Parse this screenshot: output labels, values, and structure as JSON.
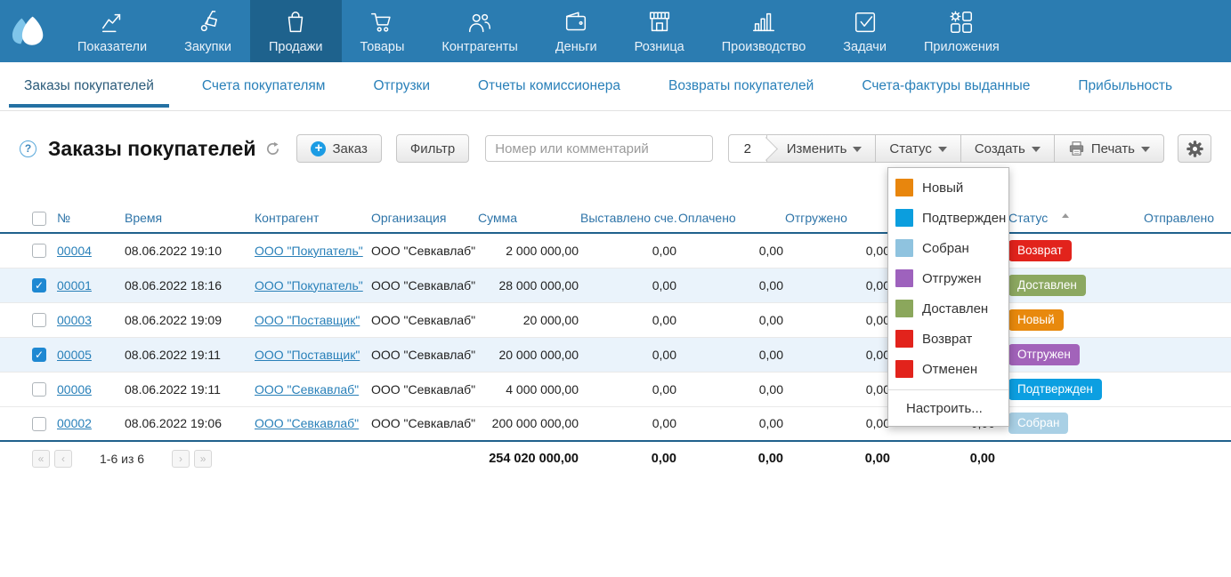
{
  "colors": {
    "topnav_bg": "#2B7CB1",
    "topnav_active_bg": "#1E628D",
    "tab_link": "#2980B9",
    "tab_underline": "#2471A3",
    "table_header_text": "#2E74A8",
    "table_header_border": "#20618C",
    "selected_row_bg": "#EAF3FB",
    "checkbox_checked": "#1E88D2",
    "link": "#2980B9"
  },
  "topnav": {
    "items": [
      {
        "label": "Показатели",
        "icon": "metrics-icon"
      },
      {
        "label": "Закупки",
        "icon": "purchases-icon"
      },
      {
        "label": "Продажи",
        "icon": "sales-icon",
        "active": true
      },
      {
        "label": "Товары",
        "icon": "goods-icon"
      },
      {
        "label": "Контрагенты",
        "icon": "counterparties-icon"
      },
      {
        "label": "Деньги",
        "icon": "money-icon"
      },
      {
        "label": "Розница",
        "icon": "retail-icon"
      },
      {
        "label": "Производство",
        "icon": "production-icon"
      },
      {
        "label": "Задачи",
        "icon": "tasks-icon"
      },
      {
        "label": "Приложения",
        "icon": "apps-icon"
      }
    ]
  },
  "tabs": {
    "items": [
      {
        "label": "Заказы покупателей",
        "active": true
      },
      {
        "label": "Счета покупателям"
      },
      {
        "label": "Отгрузки"
      },
      {
        "label": "Отчеты комиссионера"
      },
      {
        "label": "Возвраты покупателей"
      },
      {
        "label": "Счета-фактуры выданные"
      },
      {
        "label": "Прибыльность"
      }
    ]
  },
  "toolbar": {
    "help_glyph": "?",
    "title": "Заказы покупателей",
    "order_button": "Заказ",
    "filter_button": "Фильтр",
    "search_placeholder": "Номер или комментарий",
    "selected_count": "2",
    "edit_button": "Изменить",
    "status_button": "Статус",
    "create_button": "Создать",
    "print_button": "Печать"
  },
  "status_menu": {
    "items": [
      {
        "label": "Новый",
        "color": "#E8860D"
      },
      {
        "label": "Подтвержден",
        "color": "#0B9EDE"
      },
      {
        "label": "Собран",
        "color": "#8FC3DF"
      },
      {
        "label": "Отгружен",
        "color": "#9E62BD"
      },
      {
        "label": "Доставлен",
        "color": "#8BA75C"
      },
      {
        "label": "Возврат",
        "color": "#E2231C"
      },
      {
        "label": "Отменен",
        "color": "#E2231C"
      }
    ],
    "configure_label": "Настроить..."
  },
  "table": {
    "headers": [
      "№",
      "Время",
      "Контрагент",
      "Организация",
      "Сумма",
      "Выставлено сче...",
      "Оплачено",
      "Отгружено",
      "",
      "Статус",
      "Отправлено"
    ],
    "rows": [
      {
        "checked": false,
        "selected": false,
        "number": "00004",
        "time": "08.06.2022 19:10",
        "counterparty": "ООО \"Покупатель\"",
        "organization": "ООО \"Севкавлаб\"",
        "sum": "2 000 000,00",
        "invoiced": "0,00",
        "paid": "0,00",
        "shipped": "0,00",
        "returned": "0,00",
        "status": "Возврат",
        "status_color": "#E2231C",
        "sent": ""
      },
      {
        "checked": true,
        "selected": true,
        "number": "00001",
        "time": "08.06.2022 18:16",
        "counterparty": "ООО \"Покупатель\"",
        "organization": "ООО \"Севкавлаб\"",
        "sum": "28 000 000,00",
        "invoiced": "0,00",
        "paid": "0,00",
        "shipped": "0,00",
        "returned": "0,00",
        "status": "Доставлен",
        "status_color": "#8CA861",
        "sent": ""
      },
      {
        "checked": false,
        "selected": false,
        "number": "00003",
        "time": "08.06.2022 19:09",
        "counterparty": "ООО \"Поставщик\"",
        "organization": "ООО \"Севкавлаб\"",
        "sum": "20 000,00",
        "invoiced": "0,00",
        "paid": "0,00",
        "shipped": "0,00",
        "returned": "0,00",
        "status": "Новый",
        "status_color": "#E8890D",
        "sent": ""
      },
      {
        "checked": true,
        "selected": true,
        "number": "00005",
        "time": "08.06.2022 19:11",
        "counterparty": "ООО \"Поставщик\"",
        "organization": "ООО \"Севкавлаб\"",
        "sum": "20 000 000,00",
        "invoiced": "0,00",
        "paid": "0,00",
        "shipped": "0,00",
        "returned": "0,00",
        "status": "Отгружен",
        "status_color": "#A263BA",
        "sent": ""
      },
      {
        "checked": false,
        "selected": false,
        "number": "00006",
        "time": "08.06.2022 19:11",
        "counterparty": "ООО \"Севкавлаб\"",
        "organization": "ООО \"Севкавлаб\"",
        "sum": "4 000 000,00",
        "invoiced": "0,00",
        "paid": "0,00",
        "shipped": "0,00",
        "returned": "0,00",
        "status": "Подтвержден",
        "status_color": "#0C9FE1",
        "sent": ""
      },
      {
        "checked": false,
        "selected": false,
        "number": "00002",
        "time": "08.06.2022 19:06",
        "counterparty": "ООО \"Севкавлаб\"",
        "organization": "ООО \"Севкавлаб\"",
        "sum": "200 000 000,00",
        "invoiced": "0,00",
        "paid": "0,00",
        "shipped": "0,00",
        "returned": "0,00",
        "status": "Собран",
        "status_color": "#A9D0E5",
        "sent": ""
      }
    ]
  },
  "footer": {
    "pager": {
      "first": "«",
      "prev": "‹",
      "next": "›",
      "last": "»"
    },
    "range_label": "1-6 из 6",
    "totals": {
      "sum": "254 020 000,00",
      "invoiced": "0,00",
      "paid": "0,00",
      "shipped": "0,00",
      "returned": "0,00"
    }
  }
}
